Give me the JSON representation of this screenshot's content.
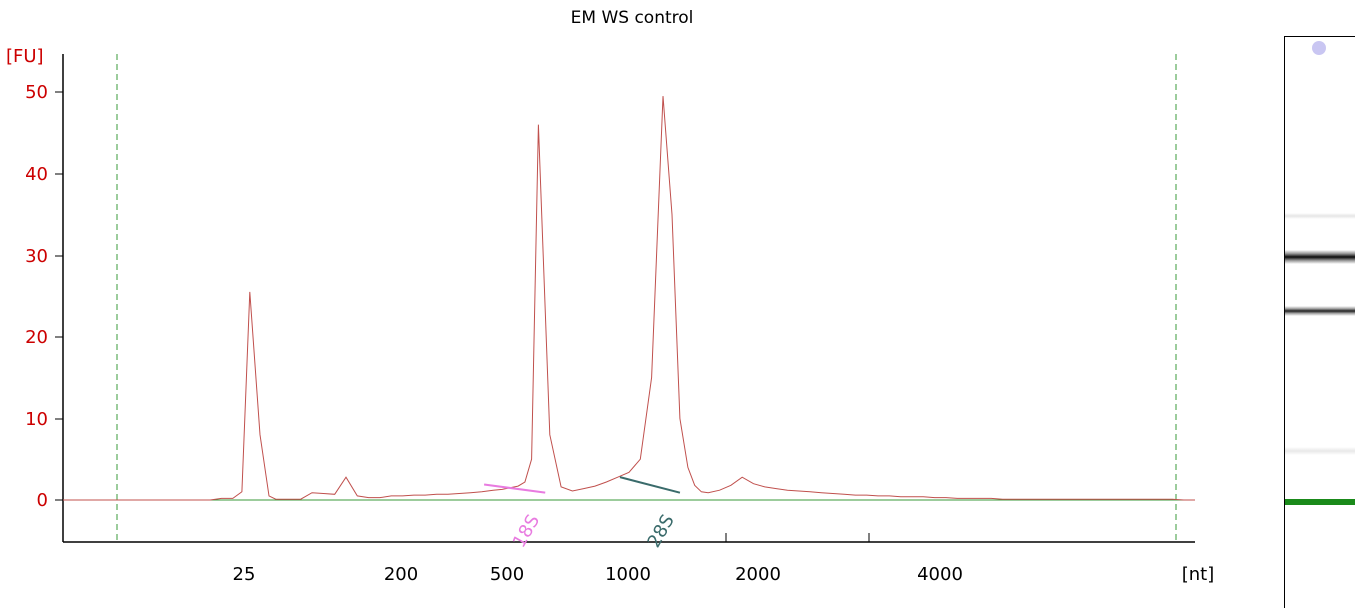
{
  "chart_data": {
    "type": "line",
    "title": "EM WS control",
    "ylabel": "[FU]",
    "xlabel": "[nt]",
    "ylim": [
      -5,
      55
    ],
    "yticks": [
      0,
      10,
      20,
      30,
      40,
      50
    ],
    "xticks": [
      "25",
      "200",
      "500",
      "1000",
      "2000",
      "4000"
    ],
    "grid": false,
    "line_color": "#c0504d",
    "baseline_color": "#3a9a3a",
    "series": [
      {
        "x": [
          0,
          13,
          14,
          15,
          15.8,
          16.5,
          17.4,
          18.2,
          18.8,
          19.4,
          20,
          21,
          22,
          23,
          24,
          25,
          26,
          27,
          28,
          29,
          30,
          31,
          32,
          33,
          34,
          35,
          36,
          37,
          38,
          38.8,
          39.5,
          40.2,
          40.8,
          41.4,
          42,
          43,
          44,
          45,
          46,
          47,
          48,
          49,
          50,
          51,
          52,
          53,
          53.8,
          54.5,
          55.2,
          55.8,
          56.4,
          57,
          58,
          59,
          60,
          61,
          62,
          63,
          64,
          65,
          66,
          67,
          68,
          69,
          70,
          71,
          72,
          73,
          74,
          75,
          76,
          77,
          78,
          79,
          80,
          81,
          82,
          83,
          84,
          85,
          86,
          87,
          88,
          89,
          90,
          91,
          92,
          93,
          94,
          95,
          96,
          97,
          98,
          99,
          100
        ],
        "y": [
          0,
          0,
          0.2,
          0.2,
          1,
          25.5,
          8,
          0.5,
          0.1,
          0.1,
          0.1,
          0.1,
          0.9,
          0.8,
          0.7,
          2.8,
          0.5,
          0.3,
          0.3,
          0.5,
          0.5,
          0.6,
          0.6,
          0.7,
          0.7,
          0.8,
          0.9,
          1,
          1.2,
          1.3,
          1.5,
          1.7,
          2.2,
          5,
          46,
          8,
          1.6,
          1.1,
          1.4,
          1.7,
          2.2,
          2.8,
          3.4,
          5,
          15,
          49.5,
          35,
          10,
          4,
          1.8,
          1,
          0.9,
          1.2,
          1.8,
          2.8,
          2,
          1.6,
          1.4,
          1.2,
          1.1,
          1,
          0.9,
          0.8,
          0.7,
          0.6,
          0.6,
          0.5,
          0.5,
          0.4,
          0.4,
          0.4,
          0.3,
          0.3,
          0.2,
          0.2,
          0.2,
          0.2,
          0.1,
          0.1,
          0.1,
          0.1,
          0.1,
          0.1,
          0.1,
          0.1,
          0.1,
          0.1,
          0.1,
          0.1,
          0.1,
          0.1,
          0.1,
          0.1,
          0,
          0
        ]
      }
    ],
    "annotations": [
      {
        "label": "18S",
        "color": "#e87be0",
        "x_start": 37.2,
        "y_start": 1.9,
        "x_end": 42.6,
        "y_end": 0.9
      },
      {
        "label": "28S",
        "color": "#3a6b6b",
        "x_start": 49.2,
        "y_start": 2.8,
        "x_end": 54.5,
        "y_end": 0.9
      }
    ]
  }
}
